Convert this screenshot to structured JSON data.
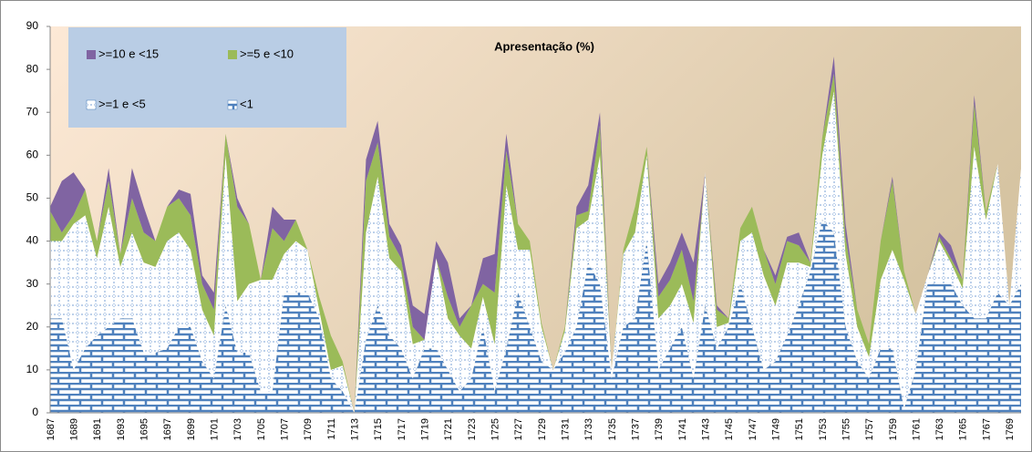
{
  "chart_data": {
    "type": "stacked_area",
    "title": "Apresentação (%)",
    "categories": [
      "1687",
      null,
      "1689",
      null,
      "1691",
      null,
      "1693",
      null,
      "1695",
      null,
      "1697",
      null,
      "1699",
      null,
      "1701",
      null,
      "1703",
      null,
      "1705",
      null,
      "1707",
      null,
      "1709",
      null,
      "1711",
      null,
      "1713",
      null,
      "1715",
      null,
      "1717",
      null,
      "1719",
      null,
      "1721",
      null,
      "1723",
      null,
      "1725",
      null,
      "1727",
      null,
      "1729",
      null,
      "1731",
      null,
      "1733",
      null,
      "1735",
      null,
      "1737",
      null,
      "1739",
      null,
      "1741",
      null,
      "1743",
      null,
      "1745",
      null,
      "1747",
      null,
      "1749",
      null,
      "1751",
      null,
      "1753",
      null,
      "1755",
      null,
      "1757",
      null,
      "1759",
      null,
      "1761",
      null,
      "1763",
      null,
      "1765",
      null,
      "1767",
      null,
      "1769",
      null
    ],
    "series": [
      {
        "name": "<1",
        "color": "#4f81bd",
        "pattern": "brick",
        "values": [
          22,
          22,
          10,
          15,
          18,
          20,
          22,
          22,
          14,
          14,
          15,
          20,
          20,
          12,
          8,
          25,
          14,
          14,
          5,
          5,
          28,
          28,
          28,
          22,
          8,
          5,
          0,
          17,
          25,
          18,
          15,
          8,
          15,
          15,
          10,
          5,
          8,
          20,
          5,
          15,
          28,
          20,
          12,
          10,
          14,
          20,
          35,
          30,
          8,
          20,
          22,
          40,
          10,
          15,
          20,
          8,
          25,
          15,
          20,
          30,
          20,
          10,
          12,
          18,
          25,
          33,
          45,
          42,
          20,
          12,
          8,
          15,
          15,
          1,
          10,
          30,
          30,
          30,
          25,
          22,
          22,
          28,
          25,
          30
        ]
      },
      {
        "name": ">=1 e <5",
        "color": "#ffffff",
        "pattern": "dots",
        "values": [
          18,
          18,
          34,
          31,
          18,
          28,
          12,
          20,
          21,
          20,
          25,
          22,
          18,
          12,
          10,
          35,
          12,
          16,
          26,
          26,
          9,
          12,
          10,
          2,
          2,
          6,
          0,
          25,
          30,
          18,
          18,
          8,
          2,
          21,
          12,
          13,
          7,
          7,
          11,
          38,
          10,
          18,
          8,
          0,
          5,
          23,
          10,
          30,
          2,
          17,
          20,
          20,
          12,
          10,
          10,
          13,
          31,
          5,
          1,
          10,
          22,
          22,
          13,
          17,
          10,
          1,
          15,
          33,
          17,
          8,
          5,
          16,
          23,
          30,
          13,
          2,
          10,
          5,
          4,
          40,
          23,
          30,
          0,
          27
        ]
      },
      {
        "name": ">=5 e <10",
        "color": "#9bbb59",
        "values": [
          7,
          2,
          2,
          6,
          4,
          6,
          3,
          8,
          7,
          6,
          8,
          8,
          8,
          6,
          6,
          5,
          22,
          14,
          0,
          12,
          3,
          5,
          0,
          3,
          8,
          1,
          0,
          12,
          8,
          5,
          3,
          4,
          0,
          0,
          5,
          2,
          10,
          3,
          12,
          8,
          6,
          2,
          1,
          0,
          1,
          3,
          2,
          7,
          0,
          1,
          6,
          2,
          5,
          6,
          8,
          5,
          0,
          4,
          1,
          3,
          6,
          6,
          5,
          5,
          4,
          1,
          4,
          4,
          4,
          4,
          3,
          9,
          16,
          2,
          0,
          0,
          1,
          1,
          2,
          10,
          2,
          0,
          0,
          0
        ]
      },
      {
        "name": ">=10 e <15",
        "color": "#8064a2",
        "values": [
          1,
          12,
          10,
          0,
          0,
          3,
          0,
          7,
          6,
          0,
          0,
          2,
          5,
          2,
          4,
          0,
          2,
          0,
          0,
          5,
          5,
          0,
          0,
          0,
          0,
          0,
          0,
          5,
          5,
          3,
          3,
          5,
          6,
          4,
          8,
          2,
          0,
          6,
          9,
          4,
          0,
          0,
          0,
          0,
          0,
          2,
          6,
          3,
          0,
          0,
          0,
          0,
          3,
          4,
          4,
          9,
          0,
          1,
          0,
          0,
          0,
          0,
          2,
          1,
          3,
          0,
          0,
          4,
          3,
          0,
          0,
          0,
          1,
          0,
          0,
          0,
          1,
          3,
          0,
          2,
          0,
          0,
          0,
          0
        ]
      }
    ],
    "ylim": [
      0,
      90
    ],
    "yticks": [
      0,
      10,
      20,
      30,
      40,
      50,
      60,
      70,
      80,
      90
    ],
    "legend": "upper left"
  }
}
